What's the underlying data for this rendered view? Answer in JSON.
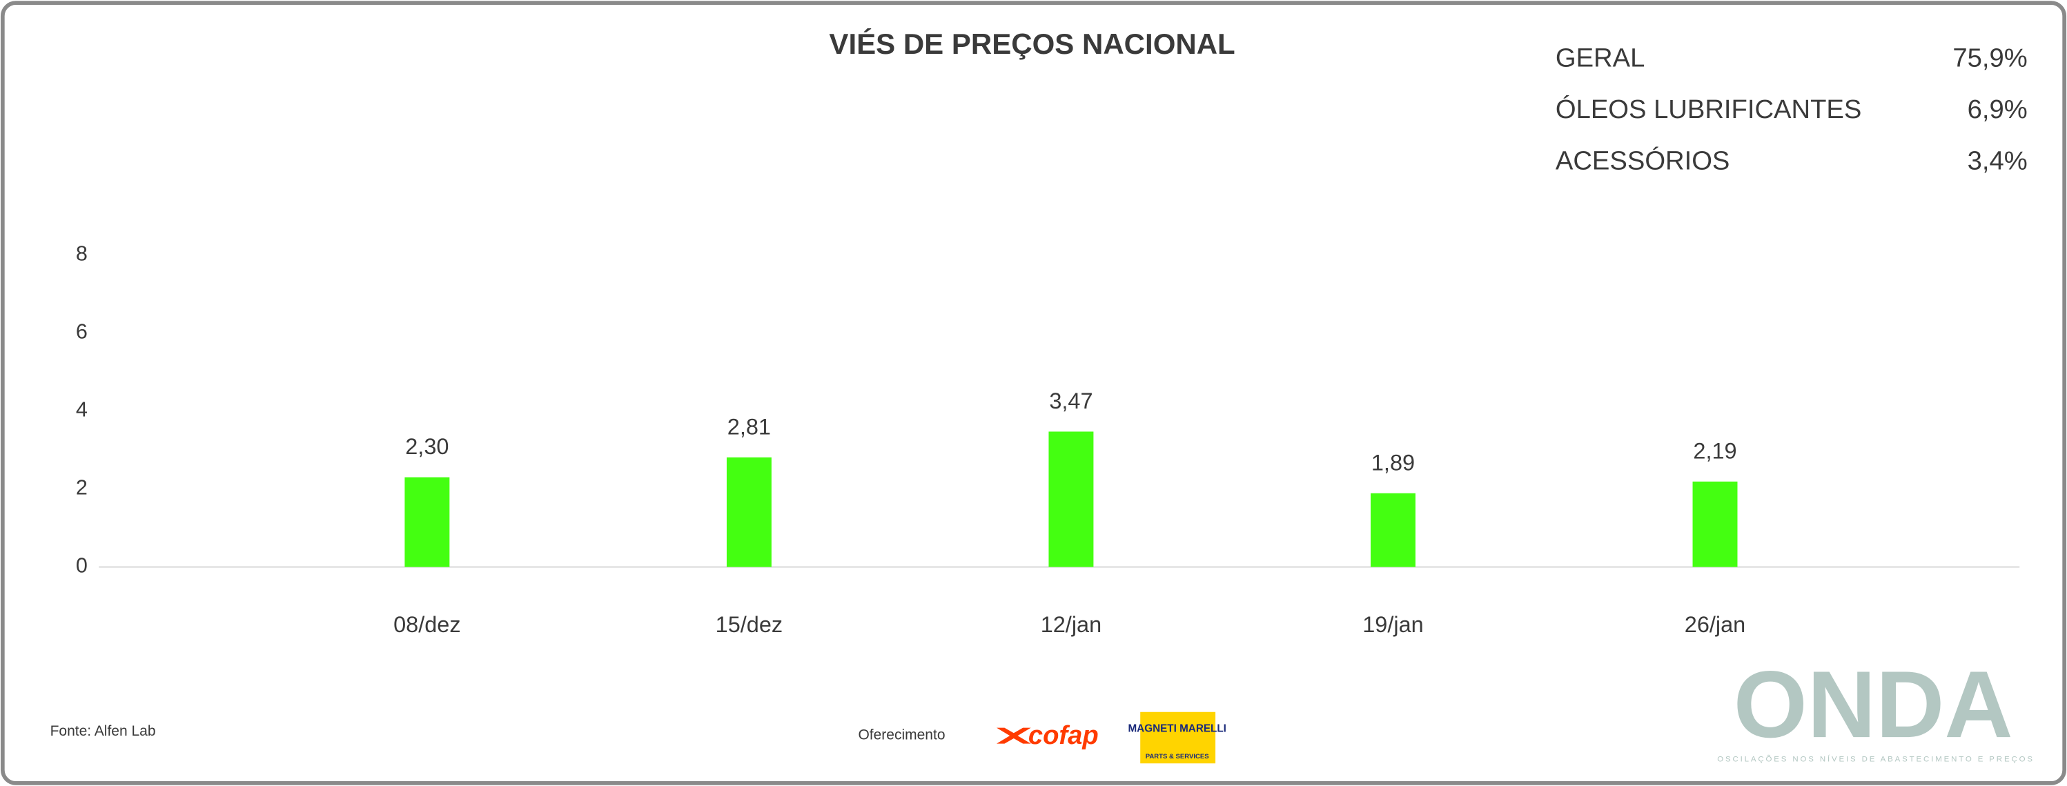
{
  "chart_data": {
    "type": "bar",
    "title": "VIÉS DE PREÇOS NACIONAL",
    "categories": [
      "08/dez",
      "15/dez",
      "12/jan",
      "19/jan",
      "26/jan"
    ],
    "values": [
      2.3,
      2.81,
      3.47,
      1.89,
      2.19
    ],
    "value_labels": [
      "2,30",
      "2,81",
      "3,47",
      "1,89",
      "2,19"
    ],
    "color": "#44ff11",
    "ylim": [
      0,
      10
    ],
    "yticks": [
      0,
      2,
      4,
      6,
      8
    ],
    "grid": false,
    "summary": [
      {
        "label": "GERAL",
        "value": "75,9%"
      },
      {
        "label": "ÓLEOS LUBRIFICANTES",
        "value": "6,9%"
      },
      {
        "label": "ACESSÓRIOS",
        "value": "3,4%"
      }
    ]
  },
  "footer": {
    "source": "Fonte: Alfen Lab",
    "sponsor_label": "Oferecimento",
    "sponsors": [
      "cofap",
      "MAGNETI MARELLI",
      "PARTS & SERVICES"
    ],
    "brand": "ONDA",
    "tagline": "OSCILAÇÕES NOS NÍVEIS DE ABASTECIMENTO E PREÇOS"
  }
}
